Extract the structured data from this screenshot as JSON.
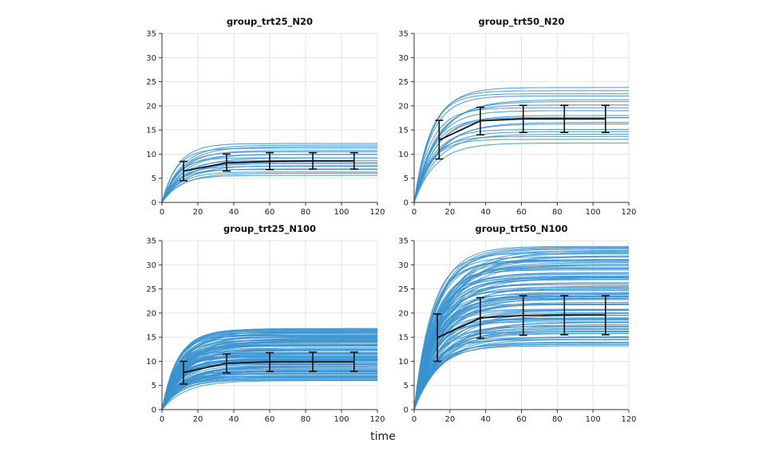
{
  "figure": {
    "xlabel": "time",
    "colors": {
      "curve": "#3a93d0",
      "mean": "#111111",
      "grid": "#e3e3e3",
      "axis": "#333333"
    }
  },
  "chart_data": [
    {
      "type": "line",
      "title": "group_trt25_N20",
      "xlim": [
        0,
        120
      ],
      "ylim": [
        0,
        35
      ],
      "xticks": [
        0,
        20,
        40,
        60,
        80,
        100,
        120
      ],
      "yticks": [
        0,
        5,
        10,
        15,
        20,
        25,
        30,
        35
      ],
      "grid": true,
      "curve_family": {
        "count": 20,
        "asymptote_min": 5.6,
        "asymptote_max": 12.2,
        "rate": 0.1
      },
      "series": [
        {
          "x": [
            12,
            36,
            60,
            84,
            107
          ],
          "mean": [
            6.5,
            8.2,
            8.5,
            8.6,
            8.6
          ],
          "lower": [
            4.5,
            6.5,
            6.8,
            6.9,
            6.9
          ],
          "upper": [
            8.5,
            10.0,
            10.3,
            10.3,
            10.3
          ]
        }
      ]
    },
    {
      "type": "line",
      "title": "group_trt50_N20",
      "xlim": [
        0,
        120
      ],
      "ylim": [
        0,
        35
      ],
      "xticks": [
        0,
        20,
        40,
        60,
        80,
        100,
        120
      ],
      "yticks": [
        0,
        5,
        10,
        15,
        20,
        25,
        30,
        35
      ],
      "grid": true,
      "curve_family": {
        "count": 20,
        "asymptote_min": 12.3,
        "asymptote_max": 23.8,
        "rate": 0.09
      },
      "series": [
        {
          "x": [
            14,
            37,
            61,
            84,
            107
          ],
          "mean": [
            12.9,
            16.9,
            17.3,
            17.3,
            17.3
          ],
          "lower": [
            9.0,
            14.0,
            14.5,
            14.5,
            14.5
          ],
          "upper": [
            17.0,
            19.7,
            20.1,
            20.1,
            20.1
          ]
        }
      ]
    },
    {
      "type": "line",
      "title": "group_trt25_N100",
      "xlim": [
        0,
        120
      ],
      "ylim": [
        0,
        35
      ],
      "xticks": [
        0,
        20,
        40,
        60,
        80,
        100,
        120
      ],
      "yticks": [
        0,
        5,
        10,
        15,
        20,
        25,
        30,
        35
      ],
      "grid": true,
      "curve_family": {
        "count": 100,
        "asymptote_min": 6.0,
        "asymptote_max": 16.8,
        "rate": 0.1
      },
      "series": [
        {
          "x": [
            12,
            36,
            60,
            84,
            107
          ],
          "mean": [
            7.7,
            9.6,
            9.9,
            9.9,
            9.9
          ],
          "lower": [
            5.3,
            7.6,
            7.9,
            7.9,
            7.9
          ],
          "upper": [
            10.0,
            11.5,
            11.8,
            11.9,
            11.9
          ]
        }
      ]
    },
    {
      "type": "line",
      "title": "group_trt50_N100",
      "xlim": [
        0,
        120
      ],
      "ylim": [
        0,
        35
      ],
      "xticks": [
        0,
        20,
        40,
        60,
        80,
        100,
        120
      ],
      "yticks": [
        0,
        5,
        10,
        15,
        20,
        25,
        30,
        35
      ],
      "grid": true,
      "curve_family": {
        "count": 100,
        "asymptote_min": 13.2,
        "asymptote_max": 33.8,
        "rate": 0.08
      },
      "series": [
        {
          "x": [
            13,
            37,
            61,
            84,
            107
          ],
          "mean": [
            14.9,
            19.0,
            19.5,
            19.6,
            19.6
          ],
          "lower": [
            10.0,
            14.8,
            15.4,
            15.5,
            15.5
          ],
          "upper": [
            19.8,
            23.2,
            23.6,
            23.6,
            23.6
          ]
        }
      ]
    }
  ]
}
